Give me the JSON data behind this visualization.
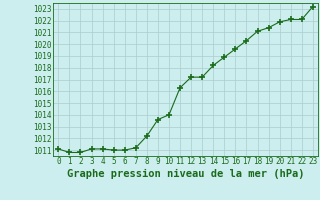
{
  "x": [
    0,
    1,
    2,
    3,
    4,
    5,
    6,
    7,
    8,
    9,
    10,
    11,
    12,
    13,
    14,
    15,
    16,
    17,
    18,
    19,
    20,
    21,
    22,
    23
  ],
  "y": [
    1011.1,
    1010.8,
    1010.8,
    1011.1,
    1011.1,
    1011.0,
    1011.0,
    1011.2,
    1012.2,
    1013.6,
    1014.0,
    1016.3,
    1017.2,
    1017.2,
    1018.2,
    1018.9,
    1019.6,
    1020.3,
    1021.1,
    1021.4,
    1021.9,
    1022.1,
    1022.1,
    1023.2
  ],
  "line_color": "#1a6b1a",
  "marker": "+",
  "marker_size": 4,
  "marker_lw": 1.2,
  "bg_color": "#cceeee",
  "grid_color": "#aacccc",
  "title": "Graphe pression niveau de la mer (hPa)",
  "title_color": "#1a6b1a",
  "xlim": [
    -0.5,
    23.5
  ],
  "ylim": [
    1010.5,
    1023.5
  ],
  "yticks": [
    1011,
    1012,
    1013,
    1014,
    1015,
    1016,
    1017,
    1018,
    1019,
    1020,
    1021,
    1022,
    1023
  ],
  "xticks": [
    0,
    1,
    2,
    3,
    4,
    5,
    6,
    7,
    8,
    9,
    10,
    11,
    12,
    13,
    14,
    15,
    16,
    17,
    18,
    19,
    20,
    21,
    22,
    23
  ],
  "tick_color": "#1a6b1a",
  "tick_fontsize": 5.5,
  "title_fontsize": 7.5,
  "spine_color": "#1a6b1a",
  "linewidth": 0.8
}
